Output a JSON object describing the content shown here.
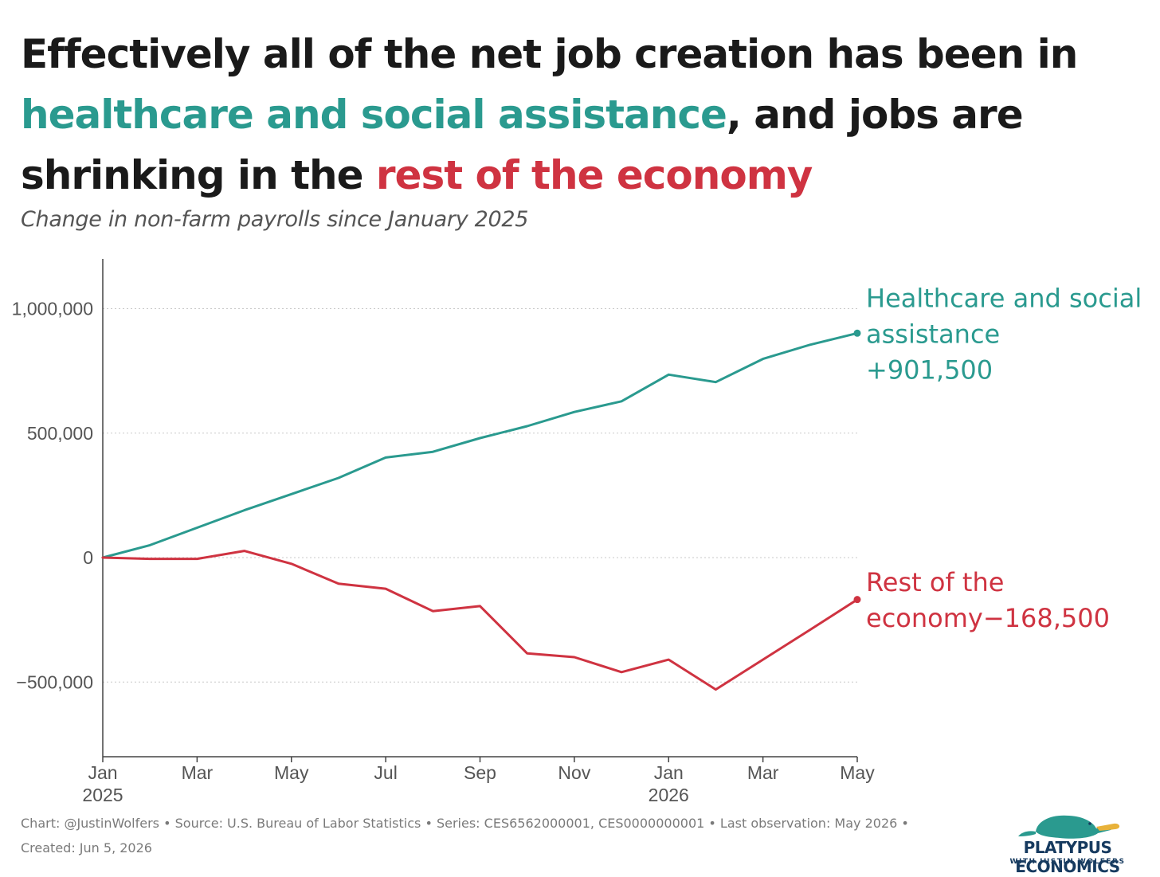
{
  "title": {
    "part1": "Effectively all of the net job creation has been in ",
    "part2": "healthcare and social assistance",
    "part3": ", and jobs are shrinking in the ",
    "part4": "rest of the economy"
  },
  "subtitle": "Change in non-farm payrolls since January 2025",
  "footer": {
    "credits": "Chart: @JustinWolfers • Source: U.S. Bureau of Labor Statistics • Series: CES6562000001, CES0000000001 • Last observation: May 2026 • Created: Jun 5, 2026"
  },
  "logo": {
    "name": "PLATYPUS ECONOMICS",
    "tagline": "WITH JUSTIN WOLFERS",
    "icon": "platypus-icon"
  },
  "colors": {
    "healthcare": "#2a9a8f",
    "rest": "#cf3341",
    "text": "#1a1a1a",
    "axis": "#555555",
    "grid": "#c8c8c8"
  },
  "chart_data": {
    "type": "line",
    "ylim": [
      -800000,
      1200000
    ],
    "yticks": [
      {
        "value": 1000000,
        "label": "1,000,000"
      },
      {
        "value": 500000,
        "label": "500,000"
      },
      {
        "value": 0,
        "label": "0"
      },
      {
        "value": -500000,
        "label": "−500,000"
      }
    ],
    "xticks": [
      {
        "month": "2025-01",
        "label": "Jan",
        "year": "2025"
      },
      {
        "month": "2025-03",
        "label": "Mar",
        "year": ""
      },
      {
        "month": "2025-05",
        "label": "May",
        "year": ""
      },
      {
        "month": "2025-07",
        "label": "Jul",
        "year": ""
      },
      {
        "month": "2025-09",
        "label": "Sep",
        "year": ""
      },
      {
        "month": "2025-11",
        "label": "Nov",
        "year": ""
      },
      {
        "month": "2026-01",
        "label": "Jan",
        "year": "2026"
      },
      {
        "month": "2026-03",
        "label": "Mar",
        "year": ""
      },
      {
        "month": "2026-05",
        "label": "May",
        "year": ""
      }
    ],
    "grid": "horizontal-dotted",
    "x": [
      "2025-01",
      "2025-02",
      "2025-03",
      "2025-04",
      "2025-05",
      "2025-06",
      "2025-07",
      "2025-08",
      "2025-09",
      "2025-10",
      "2025-11",
      "2025-12",
      "2026-01",
      "2026-02",
      "2026-03",
      "2026-04",
      "2026-05"
    ],
    "series": [
      {
        "key": "healthcare",
        "label": [
          "Healthcare and social",
          "assistance",
          "+901,500"
        ],
        "values": [
          0,
          50000,
          120000,
          190000,
          255000,
          320000,
          402000,
          425000,
          480000,
          528000,
          585000,
          628000,
          735000,
          705000,
          798000,
          855000,
          901500
        ]
      },
      {
        "key": "rest",
        "label": [
          "Rest of the",
          "economy−168,500"
        ],
        "values": [
          0,
          -5000,
          -5000,
          27000,
          -25000,
          -105000,
          -125000,
          -215000,
          -195000,
          -385000,
          -400000,
          -460000,
          -410000,
          -530000,
          -410000,
          -290000,
          -168500
        ]
      }
    ]
  }
}
